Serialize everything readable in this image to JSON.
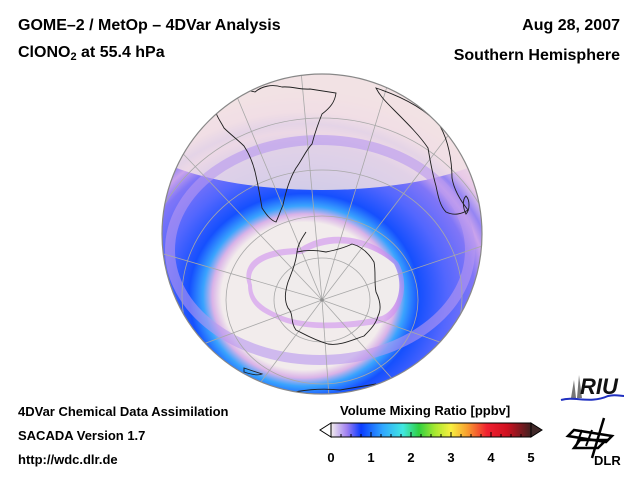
{
  "header": {
    "title_line1": "GOME–2 / MetOp – 4DVar Analysis",
    "species_prefix": "ClONO",
    "species_subscript": "2",
    "species_suffix": " at 55.4 hPa",
    "date": "Aug 28, 2007",
    "region": "Southern Hemisphere"
  },
  "footer": {
    "line1": "4DVar Chemical Data Assimilation",
    "line2": "SACADA Version 1.7",
    "line3": "http://wdc.dlr.de"
  },
  "logos": {
    "riu_text": "RIU",
    "dlr_text": "DLR"
  },
  "chart_data": {
    "type": "heatmap",
    "projection": "orthographic",
    "hemisphere": "south",
    "title": "GOME–2 / MetOp – 4DVar Analysis",
    "subtitle": "ClONO2 at 55.4 hPa",
    "date": "Aug 28, 2007",
    "variable": "ClONO2",
    "pressure_level_hpa": 55.4,
    "colorbar": {
      "label": "Volume Mixing Ratio [ppbv]",
      "min": 0,
      "max": 5,
      "ticks": [
        0,
        1,
        2,
        3,
        4,
        5
      ],
      "extend": "both",
      "stops": [
        {
          "value": 0.0,
          "color": "#f4eeee"
        },
        {
          "value": 0.4,
          "color": "#a080f0"
        },
        {
          "value": 0.75,
          "color": "#0a3cff"
        },
        {
          "value": 1.3,
          "color": "#30a8ff"
        },
        {
          "value": 1.8,
          "color": "#40e8e0"
        },
        {
          "value": 2.2,
          "color": "#30d040"
        },
        {
          "value": 2.6,
          "color": "#a8e830"
        },
        {
          "value": 3.0,
          "color": "#f8f040"
        },
        {
          "value": 3.4,
          "color": "#f8a030"
        },
        {
          "value": 3.9,
          "color": "#f02030"
        },
        {
          "value": 4.4,
          "color": "#d01020"
        },
        {
          "value": 5.0,
          "color": "#402020"
        }
      ],
      "under_color": "#ffffff",
      "over_color": "#402828"
    },
    "field_description": [
      {
        "feature": "polar vortex core (over Antarctica)",
        "value_ppbv": 0.0
      },
      {
        "feature": "vortex edge collar ring",
        "value_ppbv": 1.1
      },
      {
        "feature": "mid-latitude band",
        "value_ppbv": 0.6
      },
      {
        "feature": "outer latitudes / tropics",
        "value_ppbv": 0.05
      }
    ]
  }
}
